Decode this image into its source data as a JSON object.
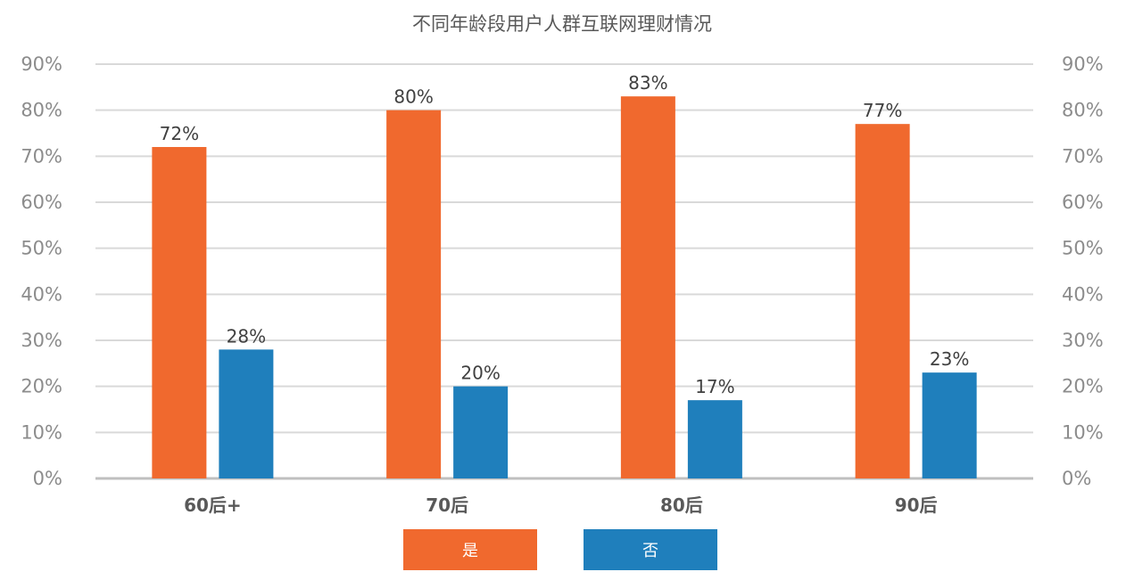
{
  "chart_data": {
    "type": "bar",
    "title": "不同年龄段用户人群互联网理财情况",
    "categories": [
      "60后+",
      "70后",
      "80后",
      "90后"
    ],
    "series": [
      {
        "name": "是",
        "color": "#f0692e",
        "values": [
          72,
          80,
          83,
          77
        ],
        "labels": [
          "72%",
          "80%",
          "83%",
          "77%"
        ]
      },
      {
        "name": "否",
        "color": "#1f7fbc",
        "values": [
          28,
          20,
          17,
          23
        ],
        "labels": [
          "28%",
          "20%",
          "17%",
          "23%"
        ]
      }
    ],
    "ylim": [
      0,
      90
    ],
    "yticks": [
      "0%",
      "10%",
      "20%",
      "30%",
      "40%",
      "50%",
      "60%",
      "70%",
      "80%",
      "90%"
    ],
    "secondary_axis": true,
    "grid": true,
    "legend_position": "bottom"
  }
}
